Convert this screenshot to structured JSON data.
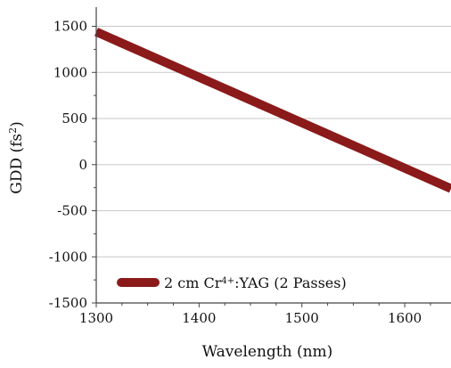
{
  "chart_data": {
    "type": "line",
    "title": "",
    "xlabel": "Wavelength (nm)",
    "ylabel_main": "GDD (fs",
    "ylabel_sup": "2",
    "ylabel_close": ")",
    "xlim": [
      1300,
      1645
    ],
    "ylim": [
      -1500,
      1650
    ],
    "x_ticks": [
      1300,
      1400,
      1500,
      1600
    ],
    "x_tick_labels": [
      "1300",
      "1400",
      "1500",
      "1600"
    ],
    "y_ticks": [
      1500,
      1000,
      500,
      0,
      -500,
      -1000,
      -1500
    ],
    "y_tick_labels": [
      "1500",
      "1000",
      "500",
      "0",
      "-500",
      "-1000",
      "-1500"
    ],
    "x_minor_step": 25,
    "y_minor_step": 250,
    "grid": "horizontal",
    "legend_position": "bottom-left",
    "series": [
      {
        "legend_prefix": "2 cm Cr",
        "legend_sup": "4+",
        "legend_suffix": ":YAG (2 Passes)",
        "color": "#8b1a1a",
        "x": [
          1300,
          1645
        ],
        "y": [
          1440,
          -260
        ]
      }
    ]
  }
}
